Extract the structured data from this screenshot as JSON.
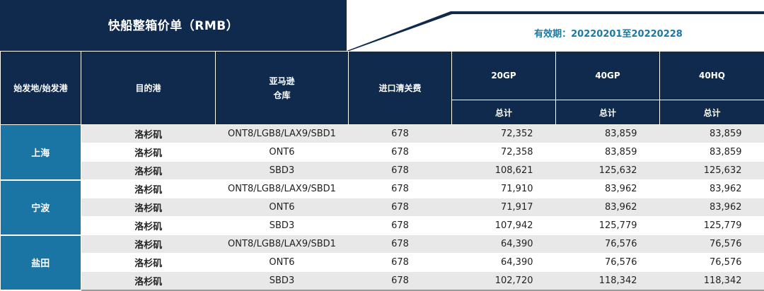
{
  "banner": {
    "title": "快船整箱价单（RMB）",
    "validity": "有效期：20220201至20220228"
  },
  "colors": {
    "header_navy": "#0f2a4c",
    "origin_blue": "#1a74a4",
    "validity_text": "#1a78a6",
    "row_shade": "#e8e8e8"
  },
  "headers": {
    "origin": "始发地/始发港",
    "dest": "目的港",
    "warehouse": "亚马逊\n仓库",
    "customs": "进口清关费",
    "gp20": "20GP",
    "gp40": "40GP",
    "hq40": "40HQ",
    "total_20gp": "总计",
    "total_40gp": "总计",
    "total_40hq": "总计"
  },
  "groups": [
    {
      "origin": "上海",
      "rows": [
        {
          "dest": "洛杉矶",
          "warehouse": "ONT8/LGB8/LAX9/SBD1",
          "customs": "678",
          "gp20": "72,352",
          "gp40": "83,859",
          "hq40": "83,859"
        },
        {
          "dest": "洛杉矶",
          "warehouse": "ONT6",
          "customs": "678",
          "gp20": "72,358",
          "gp40": "83,859",
          "hq40": "83,859"
        },
        {
          "dest": "洛杉矶",
          "warehouse": "SBD3",
          "customs": "678",
          "gp20": "108,621",
          "gp40": "125,632",
          "hq40": "125,632"
        }
      ]
    },
    {
      "origin": "宁波",
      "rows": [
        {
          "dest": "洛杉矶",
          "warehouse": "ONT8/LGB8/LAX9/SBD1",
          "customs": "678",
          "gp20": "71,910",
          "gp40": "83,962",
          "hq40": "83,962"
        },
        {
          "dest": "洛杉矶",
          "warehouse": "ONT6",
          "customs": "678",
          "gp20": "71,917",
          "gp40": "83,962",
          "hq40": "83,962"
        },
        {
          "dest": "洛杉矶",
          "warehouse": "SBD3",
          "customs": "678",
          "gp20": "107,942",
          "gp40": "125,779",
          "hq40": "125,779"
        }
      ]
    },
    {
      "origin": "盐田",
      "rows": [
        {
          "dest": "洛杉矶",
          "warehouse": "ONT8/LGB8/LAX9/SBD1",
          "customs": "678",
          "gp20": "64,390",
          "gp40": "76,576",
          "hq40": "76,576"
        },
        {
          "dest": "洛杉矶",
          "warehouse": "ONT6",
          "customs": "678",
          "gp20": "64,390",
          "gp40": "76,576",
          "hq40": "76,576"
        },
        {
          "dest": "洛杉矶",
          "warehouse": "SBD3",
          "customs": "678",
          "gp20": "102,720",
          "gp40": "118,342",
          "hq40": "118,342"
        }
      ]
    }
  ]
}
